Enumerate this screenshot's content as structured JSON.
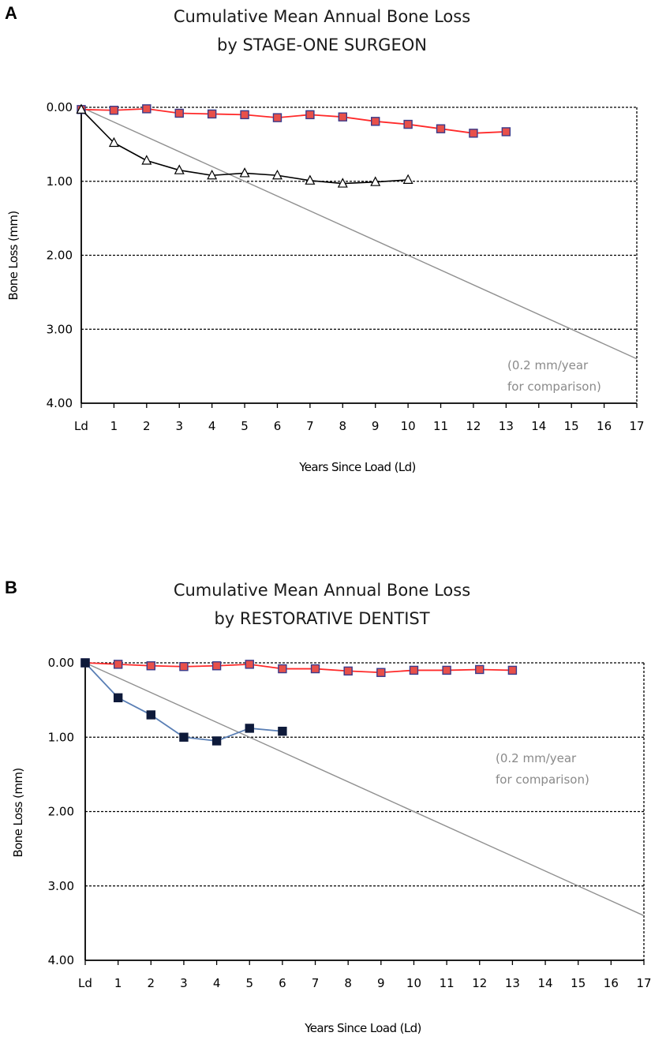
{
  "chart_data": [
    {
      "panel_label": "A",
      "type": "line",
      "title_line1": "Cumulative Mean Annual Bone Loss",
      "title_line2": "by STAGE-ONE SURGEON",
      "xlabel": "Years Since Load (Ld)",
      "ylabel": "Bone Loss (mm)",
      "x_ticks": [
        "Ld",
        "1",
        "2",
        "3",
        "4",
        "5",
        "6",
        "7",
        "8",
        "9",
        "10",
        "11",
        "12",
        "13",
        "14",
        "15",
        "16",
        "17"
      ],
      "y_ticks": [
        "0.00",
        "1.00",
        "2.00",
        "3.00",
        "4.00"
      ],
      "xlim": [
        0,
        17
      ],
      "ylim": [
        0,
        4
      ],
      "y_inverted": true,
      "grid": "dashed horizontal at each y tick",
      "annotation_line1": "(0.2 mm/year",
      "annotation_line2": "for comparison)",
      "series": [
        {
          "name": "red-squares",
          "marker": "square",
          "color": "#ff2a2a",
          "marker_fill": "#e8504a",
          "marker_edge": "#3a3a8a",
          "x": [
            0,
            1,
            2,
            3,
            4,
            5,
            6,
            7,
            8,
            9,
            10,
            11,
            12,
            13
          ],
          "values": [
            0.03,
            0.04,
            0.02,
            0.08,
            0.09,
            0.1,
            0.14,
            0.1,
            0.13,
            0.19,
            0.23,
            0.29,
            0.35,
            0.33
          ]
        },
        {
          "name": "open-triangles",
          "marker": "triangle",
          "color": "#000000",
          "marker_fill": "#ffffff",
          "marker_edge": "#000000",
          "x": [
            0,
            1,
            2,
            3,
            4,
            5,
            6,
            7,
            8,
            9,
            10
          ],
          "values": [
            0.03,
            0.48,
            0.72,
            0.85,
            0.92,
            0.89,
            0.92,
            0.99,
            1.03,
            1.01,
            0.98
          ]
        },
        {
          "name": "reference-0.2-mm-per-year",
          "marker": "none",
          "color": "#909090",
          "x": [
            0,
            17
          ],
          "values": [
            0,
            3.4
          ]
        }
      ]
    },
    {
      "panel_label": "B",
      "type": "line",
      "title_line1": "Cumulative Mean Annual Bone Loss",
      "title_line2": "by RESTORATIVE DENTIST",
      "xlabel": "Years Since Load (Ld)",
      "ylabel": "Bone Loss (mm)",
      "x_ticks": [
        "Ld",
        "1",
        "2",
        "3",
        "4",
        "5",
        "6",
        "7",
        "8",
        "9",
        "10",
        "11",
        "12",
        "13",
        "14",
        "15",
        "16",
        "17"
      ],
      "y_ticks": [
        "0.00",
        "1.00",
        "2.00",
        "3.00",
        "4.00"
      ],
      "xlim": [
        0,
        17
      ],
      "ylim": [
        0,
        4
      ],
      "y_inverted": true,
      "grid": "dashed horizontal at each y tick",
      "annotation_line1": "(0.2 mm/year",
      "annotation_line2": "for comparison)",
      "series": [
        {
          "name": "red-squares",
          "marker": "square",
          "color": "#ff2a2a",
          "marker_fill": "#e8504a",
          "marker_edge": "#3a3a8a",
          "x": [
            0,
            1,
            2,
            3,
            4,
            5,
            6,
            7,
            8,
            9,
            10,
            11,
            12,
            13
          ],
          "values": [
            0.0,
            0.02,
            0.04,
            0.05,
            0.04,
            0.02,
            0.08,
            0.08,
            0.11,
            0.13,
            0.1,
            0.1,
            0.09,
            0.1
          ]
        },
        {
          "name": "dark-squares",
          "marker": "square",
          "color": "#5a7fb5",
          "marker_fill": "#0e1a3a",
          "marker_edge": "#0e1a3a",
          "x": [
            0,
            1,
            2,
            3,
            4,
            5,
            6
          ],
          "values": [
            0.0,
            0.47,
            0.7,
            1.0,
            1.05,
            0.88,
            0.92
          ]
        },
        {
          "name": "reference-0.2-mm-per-year",
          "marker": "none",
          "color": "#909090",
          "x": [
            0,
            17
          ],
          "values": [
            0,
            3.4
          ]
        }
      ]
    }
  ]
}
